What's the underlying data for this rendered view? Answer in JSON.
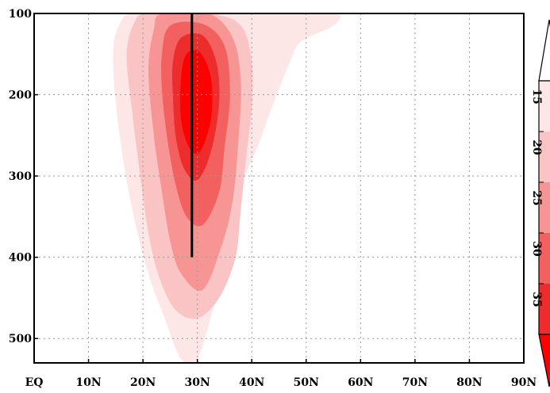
{
  "chart_data": {
    "type": "heatmap",
    "title": "",
    "xlabel": "",
    "ylabel": "",
    "x_ticks": [
      "EQ",
      "10N",
      "20N",
      "30N",
      "40N",
      "50N",
      "60N",
      "70N",
      "80N",
      "90N"
    ],
    "y_ticks": [
      "100",
      "200",
      "300",
      "400",
      "500"
    ],
    "xlim": [
      0,
      90
    ],
    "ylim": [
      100,
      530
    ],
    "y_inverted": true,
    "grid": true,
    "colorbar": {
      "ticks": [
        "15",
        "20",
        "25",
        "30",
        "35"
      ],
      "extend": "both",
      "orientation": "vertical"
    },
    "levels": [
      12.5,
      17.5,
      22.5,
      27.5,
      32.5,
      37.5
    ],
    "colors": [
      "#fde6e6",
      "#fbc4c4",
      "#f79595",
      "#f26060",
      "#ef2c2c",
      "#ff0000"
    ],
    "contours": [
      {
        "level": 12.5,
        "points": [
          [
            38,
            100
          ],
          [
            50,
            100
          ],
          [
            56,
            100
          ],
          [
            55,
            115
          ],
          [
            49,
            135
          ],
          [
            47,
            160
          ],
          [
            44,
            210
          ],
          [
            41,
            265
          ],
          [
            37,
            330
          ],
          [
            35,
            400
          ],
          [
            33,
            460
          ],
          [
            30,
            525
          ],
          [
            27,
            525
          ],
          [
            24,
            475
          ],
          [
            21,
            420
          ],
          [
            18,
            340
          ],
          [
            15.5,
            240
          ],
          [
            14.5,
            150
          ],
          [
            16,
            110
          ],
          [
            19,
            100
          ],
          [
            33,
            100
          ]
        ]
      },
      {
        "level": 17.5,
        "points": [
          [
            21,
            100
          ],
          [
            32,
            100
          ],
          [
            38,
            115
          ],
          [
            40,
            160
          ],
          [
            40,
            215
          ],
          [
            39,
            275
          ],
          [
            38,
            340
          ],
          [
            37,
            400
          ],
          [
            34,
            450
          ],
          [
            30,
            475
          ],
          [
            26,
            465
          ],
          [
            23,
            425
          ],
          [
            21,
            370
          ],
          [
            19.5,
            300
          ],
          [
            18,
            220
          ],
          [
            17,
            150
          ],
          [
            18.5,
            110
          ]
        ]
      },
      {
        "level": 22.5,
        "points": [
          [
            23.5,
            100
          ],
          [
            32,
            100
          ],
          [
            36.5,
            130
          ],
          [
            38,
            185
          ],
          [
            37.5,
            260
          ],
          [
            36.5,
            330
          ],
          [
            34.5,
            385
          ],
          [
            31,
            440
          ],
          [
            27,
            420
          ],
          [
            25,
            380
          ],
          [
            23.5,
            320
          ],
          [
            22,
            250
          ],
          [
            21,
            170
          ],
          [
            22,
            120
          ]
        ]
      },
      {
        "level": 27.5,
        "points": [
          [
            25,
            115
          ],
          [
            31,
            113
          ],
          [
            35,
            140
          ],
          [
            36,
            200
          ],
          [
            35,
            265
          ],
          [
            34,
            320
          ],
          [
            31,
            360
          ],
          [
            28,
            350
          ],
          [
            26,
            310
          ],
          [
            24.5,
            255
          ],
          [
            23.5,
            195
          ],
          [
            23.5,
            150
          ]
        ]
      },
      {
        "level": 32.5,
        "points": [
          [
            27,
            130
          ],
          [
            31,
            127
          ],
          [
            33.5,
            160
          ],
          [
            34,
            210
          ],
          [
            32.5,
            270
          ],
          [
            30,
            305
          ],
          [
            27.5,
            290
          ],
          [
            26,
            250
          ],
          [
            25.5,
            200
          ],
          [
            25.5,
            160
          ]
        ]
      },
      {
        "level": 37.5,
        "points": [
          [
            28,
            150
          ],
          [
            30.5,
            148
          ],
          [
            32.5,
            180
          ],
          [
            32.5,
            230
          ],
          [
            30.5,
            270
          ],
          [
            28.5,
            265
          ],
          [
            27,
            230
          ],
          [
            27,
            180
          ]
        ]
      }
    ],
    "overlay_line": {
      "x": 29,
      "y_start": 100,
      "y_end": 400
    }
  }
}
